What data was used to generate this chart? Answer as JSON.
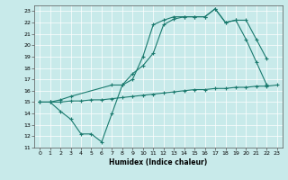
{
  "xlabel": "Humidex (Indice chaleur)",
  "xlim": [
    -0.5,
    23.5
  ],
  "ylim": [
    11,
    23.5
  ],
  "yticks": [
    11,
    12,
    13,
    14,
    15,
    16,
    17,
    18,
    19,
    20,
    21,
    22,
    23
  ],
  "xticks": [
    0,
    1,
    2,
    3,
    4,
    5,
    6,
    7,
    8,
    9,
    10,
    11,
    12,
    13,
    14,
    15,
    16,
    17,
    18,
    19,
    20,
    21,
    22,
    23
  ],
  "bg_color": "#c8eaea",
  "line_color": "#1a7a6e",
  "line1_x": [
    0,
    1,
    2,
    3,
    4,
    5,
    6,
    7,
    8,
    9,
    10,
    11,
    12,
    13,
    14,
    15,
    16,
    17,
    18,
    19,
    20,
    21,
    22
  ],
  "line1_y": [
    15,
    15,
    14.2,
    13.5,
    12.2,
    12.2,
    11.5,
    14.0,
    16.5,
    17.0,
    19.0,
    21.8,
    22.2,
    22.5,
    22.5,
    22.5,
    22.5,
    23.2,
    22.0,
    22.2,
    20.5,
    18.5,
    16.5
  ],
  "line2_x": [
    0,
    1,
    2,
    3,
    4,
    5,
    6,
    7,
    8,
    9,
    10,
    11,
    12,
    13,
    14,
    15,
    16,
    17,
    18,
    19,
    20,
    21,
    22,
    23
  ],
  "line2_y": [
    15.0,
    15.0,
    15.0,
    15.1,
    15.1,
    15.2,
    15.2,
    15.3,
    15.4,
    15.5,
    15.6,
    15.7,
    15.8,
    15.9,
    16.0,
    16.1,
    16.1,
    16.2,
    16.2,
    16.3,
    16.3,
    16.4,
    16.4,
    16.5
  ],
  "line3_x": [
    0,
    1,
    2,
    3,
    7,
    8,
    9,
    10,
    11,
    12,
    13,
    14,
    15,
    16,
    17,
    18,
    19,
    20,
    21,
    22
  ],
  "line3_y": [
    15,
    15,
    15.2,
    15.5,
    16.5,
    16.5,
    17.5,
    18.2,
    19.3,
    21.8,
    22.3,
    22.5,
    22.5,
    22.5,
    23.2,
    22.0,
    22.2,
    22.2,
    20.5,
    18.8
  ]
}
